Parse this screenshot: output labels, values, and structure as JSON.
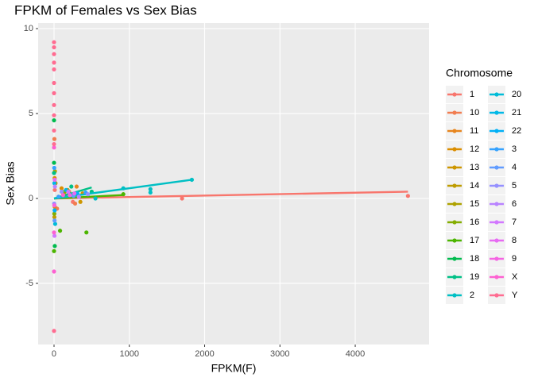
{
  "chart_data": {
    "type": "scatter",
    "title": "FPKM of Females vs Sex Bias",
    "x_label": "FPKM(F)",
    "y_label": "Sex Bias",
    "legend_title": "Chromosome",
    "xlim": [
      -211,
      4981
    ],
    "ylim": [
      -8.6,
      10.33
    ],
    "xticks": [
      0,
      1000,
      2000,
      3000,
      4000
    ],
    "yticks": [
      -5,
      0,
      5,
      10
    ],
    "grid": true,
    "series": [
      {
        "name": "1",
        "color": "#F8766D",
        "x": [
          4700,
          1700,
          250,
          120,
          10,
          5,
          60
        ],
        "values": [
          0.15,
          0.0,
          -0.2,
          0.3,
          0.5,
          -0.4,
          0.1
        ],
        "fit_x": [
          0,
          4700
        ],
        "fit_values": [
          0.0,
          0.4
        ]
      },
      {
        "name": "10",
        "color": "#F17D50",
        "x": [
          280,
          150,
          5,
          40
        ],
        "values": [
          -0.3,
          0.2,
          3.5,
          -0.6
        ]
      },
      {
        "name": "11",
        "color": "#E7851E",
        "x": [
          300,
          200,
          10
        ],
        "values": [
          0.7,
          0.4,
          -0.5
        ]
      },
      {
        "name": "12",
        "color": "#DB8E00",
        "x": [
          380,
          100,
          8
        ],
        "values": [
          0.3,
          0.6,
          1.2
        ]
      },
      {
        "name": "13",
        "color": "#CD9600",
        "x": [
          350,
          20
        ],
        "values": [
          -0.2,
          0.9
        ]
      },
      {
        "name": "14",
        "color": "#BE9C00",
        "x": [
          180,
          5
        ],
        "values": [
          0.5,
          -1.1
        ]
      },
      {
        "name": "15",
        "color": "#AEA200",
        "x": [
          220,
          12
        ],
        "values": [
          0.1,
          1.6
        ]
      },
      {
        "name": "16",
        "color": "#84AD00",
        "x": [
          140,
          4
        ],
        "values": [
          0.4,
          -0.9
        ]
      },
      {
        "name": "17",
        "color": "#4CB500",
        "x": [
          430,
          80,
          0,
          920
        ],
        "values": [
          -2.0,
          -1.9,
          -3.1,
          0.25
        ],
        "fit_x": [
          0,
          920
        ],
        "fit_values": [
          0.0,
          0.2
        ]
      },
      {
        "name": "18",
        "color": "#00BB4E",
        "x": [
          0,
          0,
          200,
          10
        ],
        "values": [
          4.6,
          2.1,
          0.3,
          -2.8
        ]
      },
      {
        "name": "19",
        "color": "#00C086",
        "x": [
          500,
          230,
          0
        ],
        "values": [
          0.4,
          0.7,
          1.5
        ],
        "fit_x": [
          0,
          500
        ],
        "fit_values": [
          0.0,
          0.65
        ]
      },
      {
        "name": "2",
        "color": "#00BFC4",
        "x": [
          1830,
          1280,
          1280,
          920,
          550
        ],
        "values": [
          1.1,
          0.55,
          0.35,
          0.6,
          0.0
        ],
        "fit_x": [
          0,
          1830
        ],
        "fit_values": [
          0.0,
          1.1
        ]
      },
      {
        "name": "20",
        "color": "#00BCD8",
        "x": [
          240,
          15
        ],
        "values": [
          0.2,
          -1.5
        ]
      },
      {
        "name": "21",
        "color": "#00B8E7",
        "x": [
          160,
          5
        ],
        "values": [
          0.5,
          0.9
        ]
      },
      {
        "name": "22",
        "color": "#00B0F6",
        "x": [
          310,
          8
        ],
        "values": [
          0.3,
          -0.7
        ]
      },
      {
        "name": "3",
        "color": "#35A2FF",
        "x": [
          420,
          60,
          3
        ],
        "values": [
          0.35,
          0.1,
          1.8
        ]
      },
      {
        "name": "4",
        "color": "#619CFF",
        "x": [
          260,
          7
        ],
        "values": [
          0.15,
          -1.3
        ]
      },
      {
        "name": "5",
        "color": "#9590FF",
        "x": [
          450,
          100,
          2
        ],
        "values": [
          0.25,
          0.4,
          -0.3
        ]
      },
      {
        "name": "6",
        "color": "#B983FF",
        "x": [
          330,
          12
        ],
        "values": [
          0.1,
          0.7
        ]
      },
      {
        "name": "7",
        "color": "#D277FF",
        "x": [
          190,
          6
        ],
        "values": [
          0.4,
          -2.2
        ]
      },
      {
        "name": "8",
        "color": "#E76BF3",
        "x": [
          270,
          9
        ],
        "values": [
          0.3,
          1.1
        ]
      },
      {
        "name": "9",
        "color": "#F564E3",
        "x": [
          210,
          4
        ],
        "values": [
          0.2,
          -0.4
        ]
      },
      {
        "name": "X",
        "color": "#FD61D1",
        "x": [
          0,
          0,
          0,
          120
        ],
        "values": [
          -4.3,
          -2.0,
          3.0,
          0.2
        ]
      },
      {
        "name": "Y",
        "color": "#FF6C91",
        "x": [
          0,
          0,
          0,
          0,
          0,
          0,
          0,
          0,
          0,
          0,
          0,
          0
        ],
        "values": [
          9.2,
          8.9,
          8.5,
          8.0,
          7.6,
          6.8,
          6.2,
          5.5,
          4.9,
          4.0,
          3.2,
          -7.8
        ]
      }
    ]
  }
}
